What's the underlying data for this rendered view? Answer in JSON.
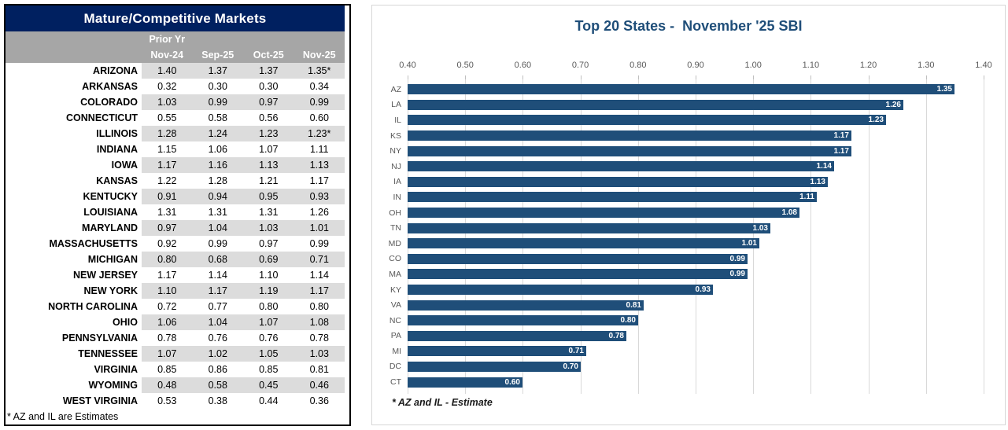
{
  "table": {
    "title": "Mature/Competitive Markets",
    "header": {
      "group_label": "Prior Yr",
      "columns": [
        "Nov-24",
        "Sep-25",
        "Oct-25",
        "Nov-25"
      ]
    },
    "rows": [
      {
        "state": "ARIZONA",
        "values": [
          "1.40",
          "1.37",
          "1.37",
          "1.35*"
        ]
      },
      {
        "state": "ARKANSAS",
        "values": [
          "0.32",
          "0.30",
          "0.30",
          "0.34"
        ]
      },
      {
        "state": "COLORADO",
        "values": [
          "1.03",
          "0.99",
          "0.97",
          "0.99"
        ]
      },
      {
        "state": "CONNECTICUT",
        "values": [
          "0.55",
          "0.58",
          "0.56",
          "0.60"
        ]
      },
      {
        "state": "ILLINOIS",
        "values": [
          "1.28",
          "1.24",
          "1.23",
          "1.23*"
        ]
      },
      {
        "state": "INDIANA",
        "values": [
          "1.15",
          "1.06",
          "1.07",
          "1.11"
        ]
      },
      {
        "state": "IOWA",
        "values": [
          "1.17",
          "1.16",
          "1.13",
          "1.13"
        ]
      },
      {
        "state": "KANSAS",
        "values": [
          "1.22",
          "1.28",
          "1.21",
          "1.17"
        ]
      },
      {
        "state": "KENTUCKY",
        "values": [
          "0.91",
          "0.94",
          "0.95",
          "0.93"
        ]
      },
      {
        "state": "LOUISIANA",
        "values": [
          "1.31",
          "1.31",
          "1.31",
          "1.26"
        ]
      },
      {
        "state": "MARYLAND",
        "values": [
          "0.97",
          "1.04",
          "1.03",
          "1.01"
        ]
      },
      {
        "state": "MASSACHUSETTS",
        "values": [
          "0.92",
          "0.99",
          "0.97",
          "0.99"
        ]
      },
      {
        "state": "MICHIGAN",
        "values": [
          "0.80",
          "0.68",
          "0.69",
          "0.71"
        ]
      },
      {
        "state": "NEW JERSEY",
        "values": [
          "1.17",
          "1.14",
          "1.10",
          "1.14"
        ]
      },
      {
        "state": "NEW YORK",
        "values": [
          "1.10",
          "1.17",
          "1.19",
          "1.17"
        ]
      },
      {
        "state": "NORTH CAROLINA",
        "values": [
          "0.72",
          "0.77",
          "0.80",
          "0.80"
        ]
      },
      {
        "state": "OHIO",
        "values": [
          "1.06",
          "1.04",
          "1.07",
          "1.08"
        ]
      },
      {
        "state": "PENNSYLVANIA",
        "values": [
          "0.78",
          "0.76",
          "0.76",
          "0.78"
        ]
      },
      {
        "state": "TENNESSEE",
        "values": [
          "1.07",
          "1.02",
          "1.05",
          "1.03"
        ]
      },
      {
        "state": "VIRGINIA",
        "values": [
          "0.85",
          "0.86",
          "0.85",
          "0.81"
        ]
      },
      {
        "state": "WYOMING",
        "values": [
          "0.48",
          "0.58",
          "0.45",
          "0.46"
        ]
      },
      {
        "state": "WEST VIRGINIA",
        "values": [
          "0.53",
          "0.38",
          "0.44",
          "0.36"
        ]
      }
    ],
    "footnote": "* AZ and IL are Estimates",
    "colors": {
      "title_bg": "#002060",
      "header_bg": "#A6A6A6",
      "stripe": "#DCDCDC"
    }
  },
  "chart": {
    "title": "Top 20 States -  November '25 SBI",
    "footnote": "* AZ and IL - Estimate",
    "colors": {
      "bar": "#1F4E79",
      "title_text": "#1F4E79",
      "axis_text": "#595959",
      "gridline": "#D9D9D9"
    }
  },
  "chart_data": {
    "type": "bar",
    "orientation": "horizontal",
    "title": "Top 20 States -  November '25 SBI",
    "categories": [
      "AZ",
      "LA",
      "IL",
      "KS",
      "NY",
      "NJ",
      "IA",
      "IN",
      "OH",
      "TN",
      "MD",
      "CO",
      "MA",
      "KY",
      "VA",
      "NC",
      "PA",
      "MI",
      "DC",
      "CT"
    ],
    "values": [
      1.35,
      1.26,
      1.23,
      1.17,
      1.17,
      1.14,
      1.13,
      1.11,
      1.08,
      1.03,
      1.01,
      0.99,
      0.99,
      0.93,
      0.81,
      0.8,
      0.78,
      0.71,
      0.7,
      0.6
    ],
    "value_labels": [
      "1.35",
      "1.26",
      "1.23",
      "1.17",
      "1.17",
      "1.14",
      "1.13",
      "1.11",
      "1.08",
      "1.03",
      "1.01",
      "0.99",
      "0.99",
      "0.93",
      "0.81",
      "0.80",
      "0.78",
      "0.71",
      "0.70",
      "0.60"
    ],
    "xlim": [
      0.4,
      1.4
    ],
    "xticks": [
      "0.40",
      "0.50",
      "0.60",
      "0.70",
      "0.80",
      "0.90",
      "1.00",
      "1.10",
      "1.20",
      "1.30",
      "1.40"
    ],
    "grid": true,
    "legend": "none",
    "value_label_position": "inside-end"
  }
}
